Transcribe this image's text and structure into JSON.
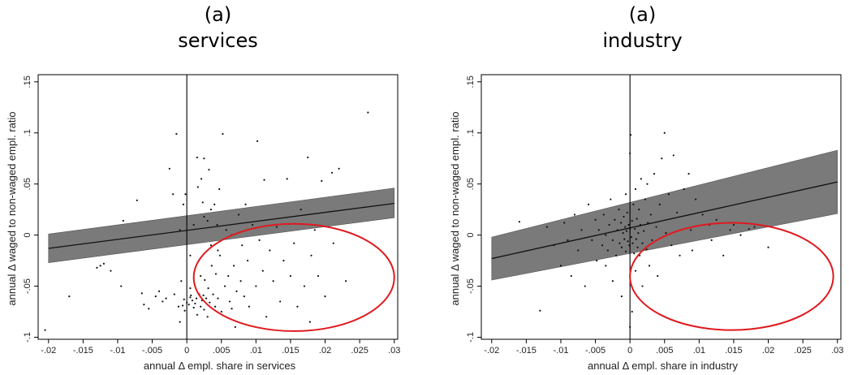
{
  "colors": {
    "band": "#7a7a7a",
    "line": "#111111",
    "ellipse": "#e0191e",
    "points": "#111111"
  },
  "chart_data": [
    {
      "type": "scatter",
      "panel_letter": "(a)",
      "title": "services",
      "xlabel": "annual Δ empl. share in services",
      "ylabel": "annual Δ waged to non-waged empl. ratio",
      "xlim": [
        -0.0215,
        0.0305
      ],
      "ylim": [
        -0.102,
        0.157
      ],
      "x_ticks": [
        -0.02,
        -0.015,
        -0.01,
        -0.005,
        0,
        0.005,
        0.01,
        0.015,
        0.02,
        0.025,
        0.03
      ],
      "x_tick_labels": [
        "-.02",
        "-.015",
        "-.01",
        "-.005",
        "0",
        ".005",
        ".01",
        ".015",
        ".02",
        ".025",
        ".03"
      ],
      "y_ticks": [
        -0.1,
        -0.05,
        0,
        0.05,
        0.1,
        0.15
      ],
      "y_tick_labels": [
        "-.1",
        "-.05",
        "0",
        ".05",
        ".1",
        ".15"
      ],
      "vline_x": 0,
      "fit": {
        "x": [
          -0.02,
          0.03
        ],
        "y": [
          -0.013,
          0.031
        ],
        "ci_lower": [
          -0.027,
          0.017
        ],
        "ci_upper": [
          0.001,
          0.046
        ]
      },
      "ellipse": {
        "cx": 0.0155,
        "cy": -0.0415,
        "rx": 0.0145,
        "ry": 0.0525
      },
      "points": [
        [
          -0.0205,
          -0.093
        ],
        [
          -0.017,
          -0.06
        ],
        [
          -0.013,
          -0.032
        ],
        [
          -0.0125,
          -0.03
        ],
        [
          -0.012,
          -0.028
        ],
        [
          -0.011,
          -0.035
        ],
        [
          -0.0095,
          -0.05
        ],
        [
          -0.0092,
          0.014
        ],
        [
          -0.0072,
          0.034
        ],
        [
          -0.0065,
          -0.057
        ],
        [
          -0.0062,
          -0.068
        ],
        [
          -0.0055,
          -0.072
        ],
        [
          -0.0045,
          -0.06
        ],
        [
          -0.004,
          -0.055
        ],
        [
          -0.0035,
          -0.065
        ],
        [
          -0.003,
          -0.062
        ],
        [
          -0.0025,
          0.065
        ],
        [
          -0.002,
          0.04
        ],
        [
          -0.0018,
          -0.058
        ],
        [
          -0.0015,
          0.099
        ],
        [
          -0.0012,
          -0.07
        ],
        [
          -0.001,
          -0.085
        ],
        [
          -0.0008,
          -0.045
        ],
        [
          -0.0005,
          0.03
        ],
        [
          -0.0004,
          -0.063
        ],
        [
          -0.0003,
          -0.074
        ],
        [
          -0.0002,
          0.04
        ],
        [
          0.0,
          -0.066
        ],
        [
          0.0003,
          -0.068
        ],
        [
          0.0005,
          -0.061
        ],
        [
          0.0006,
          -0.059
        ],
        [
          0.0008,
          -0.064
        ],
        [
          0.001,
          -0.071
        ],
        [
          0.0012,
          -0.067
        ],
        [
          0.0014,
          -0.062
        ],
        [
          0.0015,
          0.076
        ],
        [
          0.0016,
          0.047
        ],
        [
          0.0018,
          -0.058
        ],
        [
          0.002,
          -0.07
        ],
        [
          0.0021,
          0.055
        ],
        [
          0.0022,
          -0.064
        ],
        [
          0.0023,
          0.032
        ],
        [
          0.0024,
          -0.059
        ],
        [
          0.0025,
          0.075
        ],
        [
          0.0026,
          -0.044
        ],
        [
          0.0028,
          -0.062
        ],
        [
          0.003,
          0.014
        ],
        [
          0.0031,
          -0.052
        ],
        [
          0.0032,
          0.064
        ],
        [
          0.0033,
          -0.066
        ],
        [
          0.0035,
          0.025
        ],
        [
          0.0036,
          -0.03
        ],
        [
          0.0038,
          -0.058
        ],
        [
          0.004,
          0.03
        ],
        [
          0.0041,
          -0.07
        ],
        [
          0.0042,
          -0.038
        ],
        [
          0.0044,
          0.01
        ],
        [
          0.0045,
          -0.062
        ],
        [
          0.0047,
          0.045
        ],
        [
          0.0048,
          -0.02
        ],
        [
          0.005,
          -0.075
        ],
        [
          0.0052,
          0.099
        ],
        [
          0.0055,
          -0.05
        ],
        [
          0.0057,
          0.005
        ],
        [
          0.006,
          -0.04
        ],
        [
          0.0062,
          -0.065
        ],
        [
          0.0065,
          0.0
        ],
        [
          0.0068,
          -0.03
        ],
        [
          0.007,
          -0.09
        ],
        [
          0.0072,
          -0.055
        ],
        [
          0.0075,
          0.02
        ],
        [
          0.0078,
          -0.045
        ],
        [
          0.008,
          -0.01
        ],
        [
          0.0083,
          -0.06
        ],
        [
          0.0085,
          0.03
        ],
        [
          0.0088,
          -0.025
        ],
        [
          0.009,
          -0.07
        ],
        [
          0.0095,
          0.01
        ],
        [
          0.01,
          -0.05
        ],
        [
          0.0102,
          0.092
        ],
        [
          0.0105,
          -0.005
        ],
        [
          0.011,
          -0.035
        ],
        [
          0.0112,
          0.054
        ],
        [
          0.0115,
          -0.08
        ],
        [
          0.012,
          -0.015
        ],
        [
          0.0125,
          -0.045
        ],
        [
          0.013,
          0.008
        ],
        [
          0.0135,
          -0.065
        ],
        [
          0.014,
          -0.025
        ],
        [
          0.0145,
          0.055
        ],
        [
          0.015,
          -0.04
        ],
        [
          0.0155,
          -0.008
        ],
        [
          0.016,
          -0.07
        ],
        [
          0.0165,
          0.025
        ],
        [
          0.017,
          -0.05
        ],
        [
          0.0175,
          0.076
        ],
        [
          0.0178,
          -0.085
        ],
        [
          0.018,
          -0.02
        ],
        [
          0.0185,
          0.005
        ],
        [
          0.019,
          -0.04
        ],
        [
          0.0195,
          0.053
        ],
        [
          0.02,
          -0.06
        ],
        [
          0.021,
          0.061
        ],
        [
          0.0212,
          -0.008
        ],
        [
          0.022,
          0.065
        ],
        [
          0.023,
          -0.045
        ],
        [
          0.0262,
          0.12
        ],
        [
          0.001,
          0.01
        ],
        [
          -0.001,
          0.005
        ],
        [
          0.0025,
          0.018
        ],
        [
          0.0035,
          -0.01
        ],
        [
          0.0005,
          -0.02
        ],
        [
          0.002,
          -0.04
        ],
        [
          0.0045,
          -0.015
        ],
        [
          0.0065,
          -0.072
        ],
        [
          0.003,
          -0.08
        ],
        [
          0.0015,
          -0.078
        ],
        [
          0.0005,
          -0.052
        ],
        [
          -0.0006,
          -0.069
        ],
        [
          0.0025,
          -0.073
        ]
      ]
    },
    {
      "type": "scatter",
      "panel_letter": "(a)",
      "title": "industry",
      "xlabel": "annual Δ empl. share in industry",
      "ylabel": "annual Δ waged to non-waged empl. ratio",
      "xlim": [
        -0.0215,
        0.0305
      ],
      "ylim": [
        -0.102,
        0.157
      ],
      "x_ticks": [
        -0.02,
        -0.015,
        -0.01,
        -0.005,
        0,
        0.005,
        0.01,
        0.015,
        0.02,
        0.025,
        0.03
      ],
      "x_tick_labels": [
        "-.02",
        "-.015",
        "-.01",
        "-.005",
        "0",
        ".005",
        ".01",
        ".015",
        ".02",
        ".025",
        ".03"
      ],
      "y_ticks": [
        -0.1,
        -0.05,
        0,
        0.05,
        0.1,
        0.15
      ],
      "y_tick_labels": [
        "-.1",
        "-.05",
        "0",
        ".05",
        ".1",
        ".15"
      ],
      "vline_x": 0,
      "fit": {
        "x": [
          -0.02,
          0.03
        ],
        "y": [
          -0.023,
          0.052
        ],
        "ci_lower": [
          -0.044,
          0.021
        ],
        "ci_upper": [
          -0.002,
          0.083
        ]
      },
      "ellipse": {
        "cx": 0.0147,
        "cy": -0.0405,
        "rx": 0.0147,
        "ry": 0.0525
      },
      "points": [
        [
          -0.016,
          0.013
        ],
        [
          -0.013,
          -0.074
        ],
        [
          -0.012,
          0.008
        ],
        [
          -0.011,
          -0.01
        ],
        [
          -0.01,
          -0.03
        ],
        [
          -0.0095,
          0.012
        ],
        [
          -0.009,
          -0.005
        ],
        [
          -0.0085,
          -0.04
        ],
        [
          -0.008,
          0.02
        ],
        [
          -0.0075,
          -0.015
        ],
        [
          -0.007,
          0.005
        ],
        [
          -0.0065,
          -0.05
        ],
        [
          -0.006,
          0.03
        ],
        [
          -0.0055,
          -0.005
        ],
        [
          -0.005,
          0.015
        ],
        [
          -0.0048,
          -0.025
        ],
        [
          -0.0045,
          0.005
        ],
        [
          -0.004,
          -0.01
        ],
        [
          -0.0038,
          0.02
        ],
        [
          -0.0035,
          0.0
        ],
        [
          -0.0032,
          -0.015
        ],
        [
          -0.003,
          0.01
        ],
        [
          -0.0028,
          0.035
        ],
        [
          -0.0025,
          -0.005
        ],
        [
          -0.0022,
          0.015
        ],
        [
          -0.002,
          -0.02
        ],
        [
          -0.0018,
          0.005
        ],
        [
          -0.0016,
          0.025
        ],
        [
          -0.0015,
          -0.008
        ],
        [
          -0.0013,
          0.012
        ],
        [
          -0.0012,
          -0.012
        ],
        [
          -0.001,
          0.002
        ],
        [
          -0.0009,
          0.018
        ],
        [
          -0.0008,
          -0.004
        ],
        [
          -0.0007,
          0.008
        ],
        [
          -0.0006,
          -0.016
        ],
        [
          -0.0005,
          0.004
        ],
        [
          -0.0004,
          0.022
        ],
        [
          -0.0003,
          -0.006
        ],
        [
          -0.0002,
          0.01
        ],
        [
          -0.0001,
          -0.01
        ],
        [
          0.0,
          0.006
        ],
        [
          0.0,
          -0.09
        ],
        [
          0.0,
          0.08
        ],
        [
          0.0001,
          0.098
        ],
        [
          0.0002,
          -0.002
        ],
        [
          0.0003,
          0.014
        ],
        [
          0.0004,
          -0.008
        ],
        [
          0.0005,
          0.03
        ],
        [
          0.0006,
          -0.018
        ],
        [
          0.0007,
          0.006
        ],
        [
          0.0008,
          0.045
        ],
        [
          0.0009,
          -0.004
        ],
        [
          0.001,
          0.016
        ],
        [
          0.0011,
          -0.012
        ],
        [
          0.0012,
          0.002
        ],
        [
          0.0013,
          0.025
        ],
        [
          0.0014,
          -0.02
        ],
        [
          0.0015,
          0.01
        ],
        [
          0.0016,
          0.055
        ],
        [
          0.0018,
          -0.008
        ],
        [
          0.002,
          0.004
        ],
        [
          0.0022,
          0.035
        ],
        [
          0.0024,
          -0.014
        ],
        [
          0.0026,
          0.012
        ],
        [
          0.0028,
          -0.03
        ],
        [
          0.003,
          0.02
        ],
        [
          0.0032,
          -0.005
        ],
        [
          0.0035,
          0.06
        ],
        [
          0.0038,
          0.008
        ],
        [
          0.004,
          -0.04
        ],
        [
          0.0043,
          0.03
        ],
        [
          0.0046,
          0.075
        ],
        [
          0.005,
          0.1
        ],
        [
          0.0052,
          0.002
        ],
        [
          0.0056,
          0.04
        ],
        [
          0.006,
          -0.01
        ],
        [
          0.0063,
          0.078
        ],
        [
          0.0068,
          0.022
        ],
        [
          0.0072,
          -0.02
        ],
        [
          0.0078,
          0.045
        ],
        [
          0.0085,
          0.06
        ],
        [
          0.0088,
          0.005
        ],
        [
          0.009,
          -0.015
        ],
        [
          0.0095,
          0.035
        ],
        [
          0.0105,
          0.02
        ],
        [
          0.0115,
          0.01
        ],
        [
          0.0118,
          -0.005
        ],
        [
          0.0125,
          0.015
        ],
        [
          0.0135,
          -0.02
        ],
        [
          0.0145,
          0.005
        ],
        [
          0.015,
          0.01
        ],
        [
          0.016,
          0.0
        ],
        [
          0.0172,
          0.006
        ],
        [
          0.018,
          0.008
        ],
        [
          0.02,
          -0.012
        ],
        [
          -0.0025,
          -0.045
        ],
        [
          -0.0012,
          -0.06
        ],
        [
          0.0003,
          -0.075
        ],
        [
          0.0008,
          -0.035
        ],
        [
          0.0018,
          -0.05
        ],
        [
          -0.0035,
          -0.03
        ],
        [
          0.0025,
          0.05
        ],
        [
          -0.0006,
          0.04
        ]
      ]
    }
  ]
}
